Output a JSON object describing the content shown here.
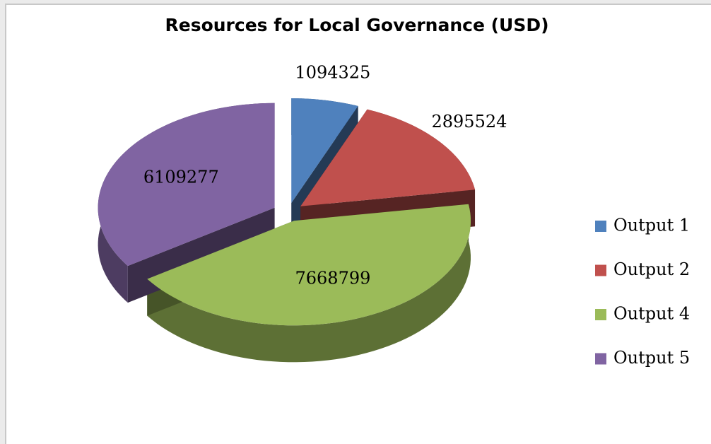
{
  "chart_data": {
    "type": "pie",
    "title": "Resources for Local Governance  (USD)",
    "categories": [
      "Output 1",
      "Output 2",
      "Output 4",
      "Output 5"
    ],
    "values": [
      1094325,
      2895524,
      7668799,
      6109277
    ],
    "colors": [
      "#4f81bd",
      "#c0504d",
      "#9bbb59",
      "#8064a2"
    ],
    "legend": "right"
  }
}
